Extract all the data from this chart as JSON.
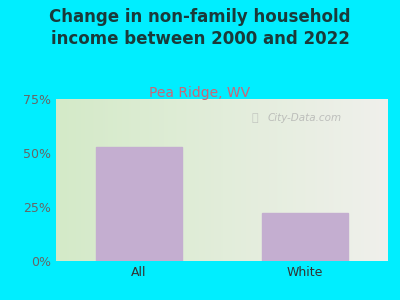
{
  "title": "Change in non-family household\nincome between 2000 and 2022",
  "subtitle": "Pea Ridge, WV",
  "categories": [
    "All",
    "White"
  ],
  "values": [
    53,
    22
  ],
  "bar_color": "#c4aed0",
  "background_color": "#00eeff",
  "plot_bg_left": "#d4eac8",
  "plot_bg_right": "#f0f0ec",
  "title_color": "#1a3a3a",
  "subtitle_color": "#cc6677",
  "ytick_color": "#666666",
  "xtick_color": "#333333",
  "ylim": [
    0,
    75
  ],
  "yticks": [
    0,
    25,
    50,
    75
  ],
  "ytick_labels": [
    "0%",
    "25%",
    "50%",
    "75%"
  ],
  "watermark": "City-Data.com",
  "title_fontsize": 12,
  "subtitle_fontsize": 10,
  "tick_fontsize": 9
}
